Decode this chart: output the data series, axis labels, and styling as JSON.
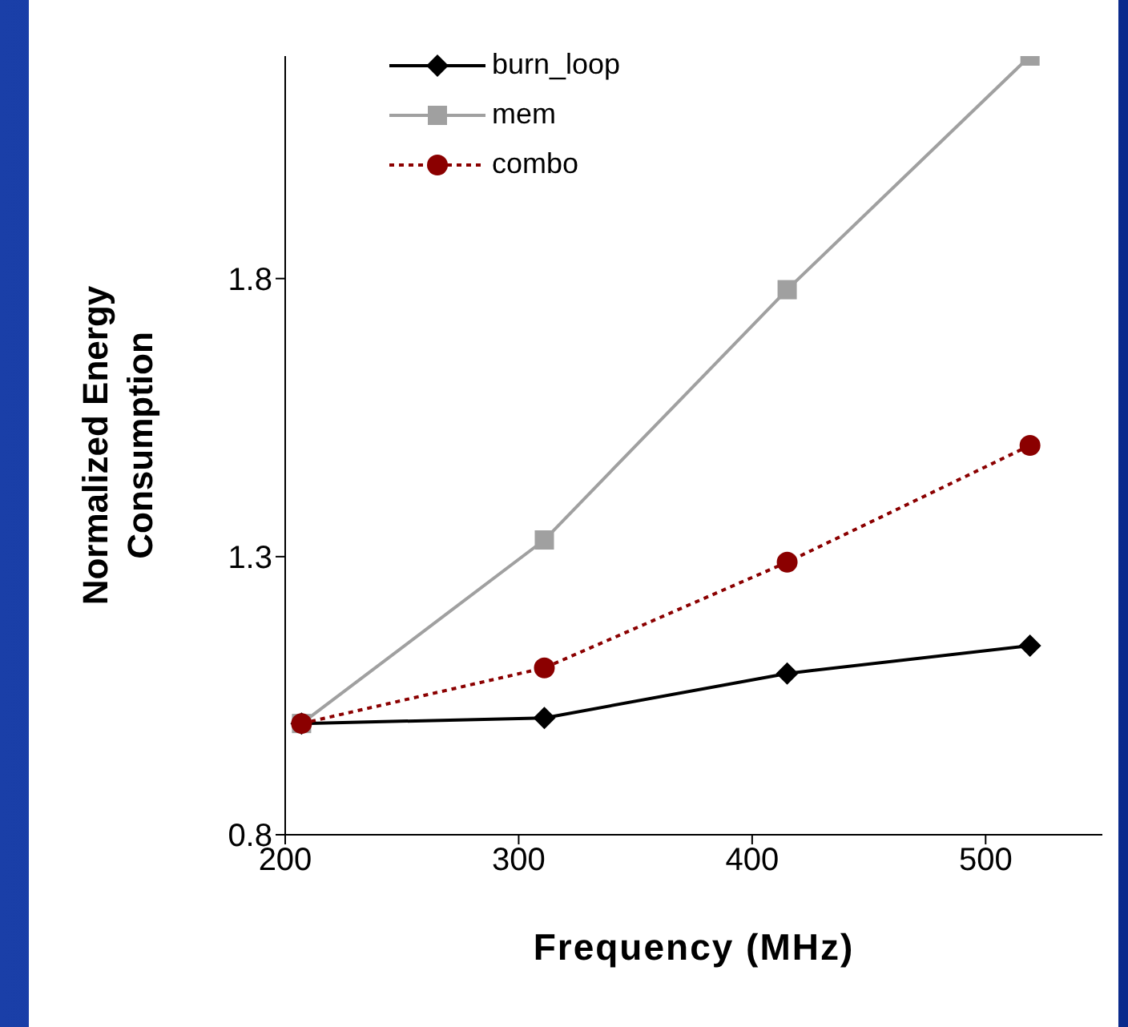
{
  "chart_data": {
    "type": "line",
    "xlabel": "Frequency (MHz)",
    "ylabel": "Normalized Energy Consumption",
    "x": [
      207,
      311,
      415,
      519
    ],
    "series": [
      {
        "name": "burn_loop",
        "color": "#000000",
        "values": [
          1.0,
          1.01,
          1.09,
          1.14
        ],
        "marker": "diamond",
        "line_style": "solid"
      },
      {
        "name": "mem",
        "color": "#a0a0a0",
        "values": [
          1.0,
          1.33,
          1.78,
          2.2
        ],
        "marker": "square",
        "line_style": "solid"
      },
      {
        "name": "combo",
        "color": "#8b0000",
        "values": [
          1.0,
          1.1,
          1.29,
          1.5
        ],
        "marker": "circle",
        "line_style": "dotted"
      }
    ],
    "xlim": [
      200,
      550
    ],
    "xticks": [
      200,
      300,
      400,
      500
    ],
    "ylim": [
      0.8,
      2.2
    ],
    "yticks": [
      0.8,
      1.3,
      1.8
    ],
    "legend": "top"
  }
}
